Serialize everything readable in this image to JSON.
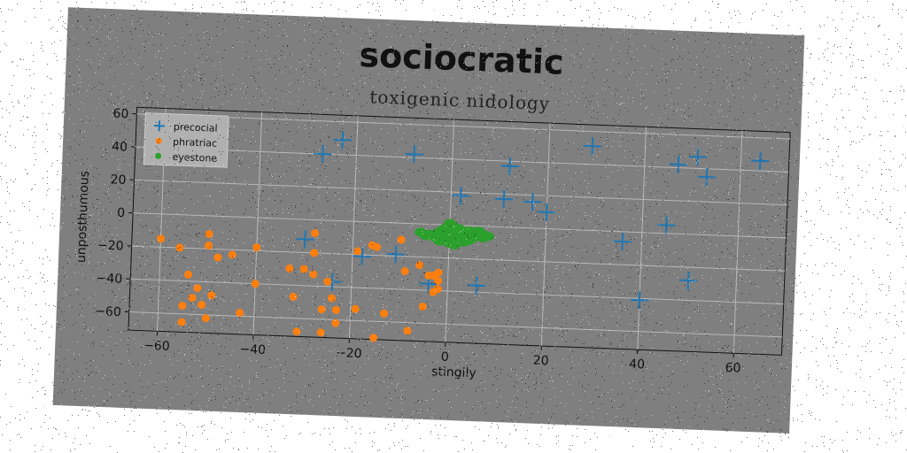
{
  "chart_data": {
    "type": "scatter",
    "title": "sociocratic",
    "subtitle": "toxigenic nidology",
    "xlabel": "stingily",
    "ylabel": "unposthumous",
    "xlim": [
      -66,
      70
    ],
    "ylim": [
      -71,
      64
    ],
    "xticks": [
      -60,
      -40,
      -20,
      0,
      20,
      40,
      60
    ],
    "yticks": [
      -60,
      -40,
      -20,
      0,
      20,
      40,
      60
    ],
    "grid": true,
    "legend_position": "top-left",
    "series": [
      {
        "name": "precocial",
        "marker": "plus",
        "color": "#1f77b4",
        "points": [
          [
            -27,
            40
          ],
          [
            -23,
            49
          ],
          [
            -8,
            42
          ],
          [
            12,
            37
          ],
          [
            29,
            51
          ],
          [
            47,
            42
          ],
          [
            51,
            47
          ],
          [
            53,
            35
          ],
          [
            64,
            46
          ],
          [
            2,
            18
          ],
          [
            11,
            17
          ],
          [
            17,
            16
          ],
          [
            20,
            10
          ],
          [
            45,
            5
          ],
          [
            36,
            -6
          ],
          [
            -30,
            -12
          ],
          [
            -11,
            -19
          ],
          [
            -18,
            -21
          ],
          [
            -24,
            -37
          ],
          [
            -4,
            -36
          ],
          [
            6,
            -36
          ],
          [
            40,
            -41
          ],
          [
            50,
            -28
          ]
        ]
      },
      {
        "name": "phratriac",
        "marker": "circle",
        "color": "#ff7f0e",
        "points": [
          [
            -60,
            -15
          ],
          [
            -56,
            -20
          ],
          [
            -50,
            -11
          ],
          [
            -50,
            -18
          ],
          [
            -48,
            -25
          ],
          [
            -45,
            -23
          ],
          [
            -40,
            -18
          ],
          [
            -40,
            -40
          ],
          [
            -54,
            -36
          ],
          [
            -52,
            -44
          ],
          [
            -55,
            -55
          ],
          [
            -53,
            -50
          ],
          [
            -49,
            -48
          ],
          [
            -51,
            -54
          ],
          [
            -50,
            -62
          ],
          [
            -55,
            -65
          ],
          [
            -43,
            -58
          ],
          [
            -33,
            -30
          ],
          [
            -30,
            -30
          ],
          [
            -28,
            -8
          ],
          [
            -28,
            -20
          ],
          [
            -28,
            -33
          ],
          [
            -32,
            -47
          ],
          [
            -25,
            -37
          ],
          [
            -24,
            -47
          ],
          [
            -26,
            -54
          ],
          [
            -23,
            -54
          ],
          [
            -23,
            -62
          ],
          [
            -31,
            -68
          ],
          [
            -26,
            -68
          ],
          [
            -19,
            -53
          ],
          [
            -15,
            -70
          ],
          [
            -13,
            -55
          ],
          [
            -19,
            -18
          ],
          [
            -16,
            -14
          ],
          [
            -15,
            -15
          ],
          [
            -10,
            -10
          ],
          [
            -9,
            -29
          ],
          [
            -6,
            -25
          ],
          [
            -4,
            -31
          ],
          [
            -3,
            -31
          ],
          [
            -2,
            -29
          ],
          [
            -2,
            -34
          ],
          [
            -2,
            -39
          ],
          [
            -3,
            -41
          ],
          [
            -5,
            -50
          ],
          [
            -8,
            -65
          ]
        ]
      },
      {
        "name": "eyestone",
        "marker": "circle",
        "color": "#2ca02c",
        "points": [
          [
            -3,
            -6
          ],
          [
            -2,
            -7
          ],
          [
            -1,
            -5
          ],
          [
            0,
            -3
          ],
          [
            0,
            -6
          ],
          [
            1,
            -8
          ],
          [
            1,
            -4
          ],
          [
            2,
            -6
          ],
          [
            2,
            -2
          ],
          [
            3,
            -7
          ],
          [
            3,
            -4
          ],
          [
            4,
            -6
          ],
          [
            4,
            -9
          ],
          [
            5,
            -5
          ],
          [
            5,
            -7
          ],
          [
            6,
            -6
          ],
          [
            7,
            -5
          ],
          [
            7,
            -7
          ],
          [
            8,
            -6
          ],
          [
            -1,
            -9
          ],
          [
            0,
            -11
          ],
          [
            1,
            -12
          ],
          [
            2,
            -10
          ],
          [
            -2,
            -4
          ],
          [
            -3,
            -8
          ],
          [
            -4,
            -6
          ],
          [
            -5,
            -7
          ],
          [
            -6,
            -5
          ],
          [
            0,
            1
          ],
          [
            1,
            -1
          ],
          [
            6,
            -3
          ],
          [
            3,
            -10
          ],
          [
            -1,
            -2
          ],
          [
            4,
            -3
          ],
          [
            -2,
            -10
          ]
        ]
      }
    ]
  }
}
